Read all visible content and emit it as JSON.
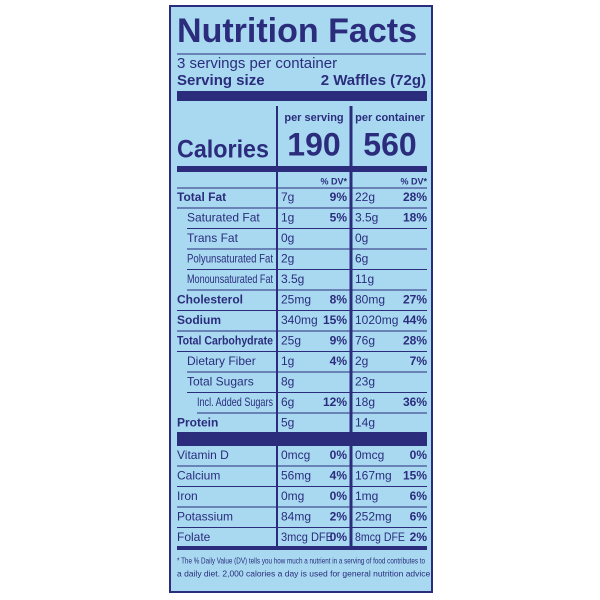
{
  "header": {
    "title": "Nutrition Facts",
    "servings": "3 servings per container",
    "serving_size_label": "Serving size",
    "serving_size": "2 Waffles (72g)"
  },
  "columns": {
    "per_serving": "per serving",
    "per_container": "per container",
    "dv": "% DV*"
  },
  "calories": {
    "label": "Calories",
    "per_serving": 190,
    "per_container": 560
  },
  "nutrients": [
    {
      "label": "Total Fat",
      "serving_amount": "7g",
      "serving_dv": "9%",
      "container_amount": "22g",
      "container_dv": "28%"
    },
    {
      "label": "Saturated Fat",
      "serving_amount": "1g",
      "serving_dv": "5%",
      "container_amount": "3.5g",
      "container_dv": "18%"
    },
    {
      "label": "Trans Fat",
      "serving_amount": "0g",
      "serving_dv": null,
      "container_amount": "0g",
      "container_dv": null
    },
    {
      "label": "Polyunsaturated Fat",
      "serving_amount": "2g",
      "serving_dv": null,
      "container_amount": "6g",
      "container_dv": null
    },
    {
      "label": "Monounsaturated Fat",
      "serving_amount": "3.5g",
      "serving_dv": null,
      "container_amount": "11g",
      "container_dv": null
    },
    {
      "label": "Cholesterol",
      "serving_amount": "25mg",
      "serving_dv": "8%",
      "container_amount": "80mg",
      "container_dv": "27%"
    },
    {
      "label": "Sodium",
      "serving_amount": "340mg",
      "serving_dv": "15%",
      "container_amount": "1020mg",
      "container_dv": "44%"
    },
    {
      "label": "Total Carbohydrate",
      "serving_amount": "25g",
      "serving_dv": "9%",
      "container_amount": "76g",
      "container_dv": "28%"
    },
    {
      "label": "Dietary Fiber",
      "serving_amount": "1g",
      "serving_dv": "4%",
      "container_amount": "2g",
      "container_dv": "7%"
    },
    {
      "label": "Total Sugars",
      "serving_amount": "8g",
      "serving_dv": null,
      "container_amount": "23g",
      "container_dv": null
    },
    {
      "label": "Incl. Added Sugars",
      "serving_amount": "6g",
      "serving_dv": "12%",
      "container_amount": "18g",
      "container_dv": "36%"
    },
    {
      "label": "Protein",
      "serving_amount": "5g",
      "serving_dv": null,
      "container_amount": "14g",
      "container_dv": null
    }
  ],
  "vitamins": [
    {
      "label": "Vitamin D",
      "serving_amount": "0mcg",
      "serving_dv": "0%",
      "container_amount": "0mcg",
      "container_dv": "0%"
    },
    {
      "label": "Calcium",
      "serving_amount": "56mg",
      "serving_dv": "4%",
      "container_amount": "167mg",
      "container_dv": "15%"
    },
    {
      "label": "Iron",
      "serving_amount": "0mg",
      "serving_dv": "0%",
      "container_amount": "1mg",
      "container_dv": "6%"
    },
    {
      "label": "Potassium",
      "serving_amount": "84mg",
      "serving_dv": "2%",
      "container_amount": "252mg",
      "container_dv": "6%"
    },
    {
      "label": "Folate",
      "serving_amount": "3mcg DFE",
      "serving_dv": "0%",
      "container_amount": "8mcg DFE",
      "container_dv": "2%"
    }
  ],
  "footnote": [
    "* The % Daily Value (DV) tells you how much a nutrient in a serving of food contributes to",
    "a daily diet. 2,000 calories a day is used for general nutrition advice."
  ]
}
